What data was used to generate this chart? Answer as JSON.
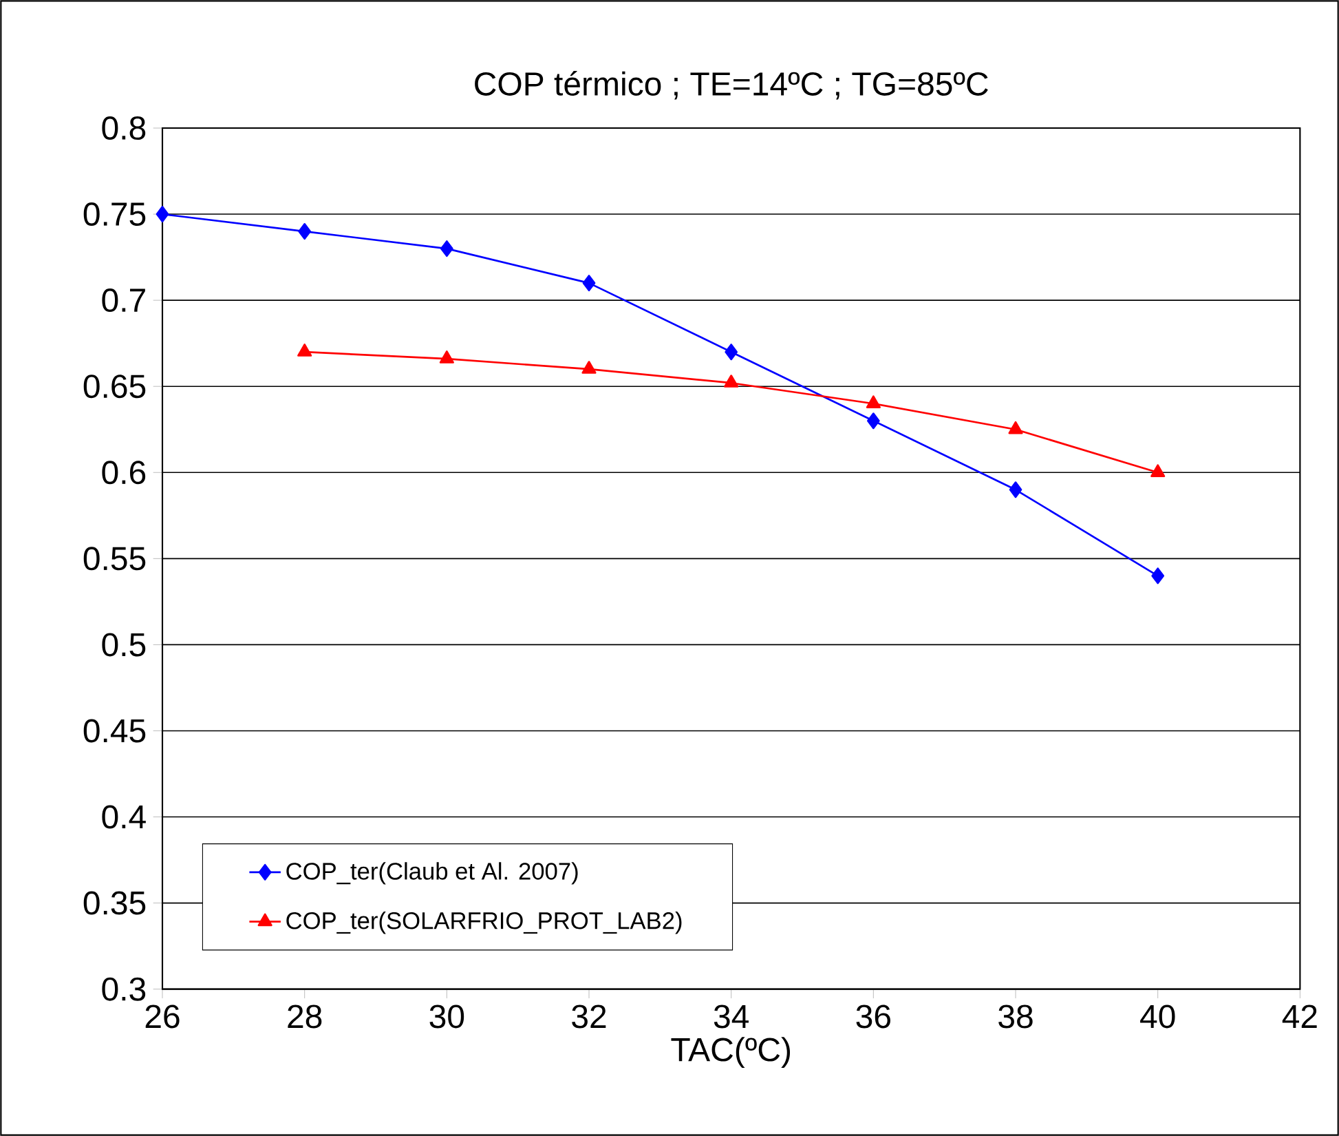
{
  "chart_data": {
    "type": "line",
    "title": "COP térmico ; TE=14ºC ; TG=85ºC",
    "xlabel": "TAC(ºC)",
    "series": [
      {
        "name": "COP_ter(Claub et Al. 2007)",
        "color": "#0000ff",
        "marker": "diamond",
        "x": [
          26,
          28,
          30,
          32,
          34,
          36,
          38,
          40
        ],
        "values": [
          0.75,
          0.74,
          0.73,
          0.71,
          0.67,
          0.63,
          0.59,
          0.54
        ]
      },
      {
        "name": "COP_ter(SOLARFRIO_PROT_LAB2)",
        "color": "#ff0000",
        "marker": "triangle",
        "x": [
          28,
          30,
          32,
          34,
          36,
          38,
          40
        ],
        "values": [
          0.67,
          0.666,
          0.66,
          0.652,
          0.64,
          0.625,
          0.6
        ]
      }
    ],
    "xlim": [
      26,
      42
    ],
    "xticks": [
      26,
      28,
      30,
      32,
      34,
      36,
      38,
      40,
      42
    ],
    "ylim": [
      0.3,
      0.8
    ],
    "yticks": [
      0.3,
      0.35,
      0.4,
      0.45,
      0.5,
      0.55,
      0.6,
      0.65,
      0.7,
      0.75,
      0.8
    ],
    "grid": "y",
    "legend": "bottom left",
    "line_style": "solid"
  }
}
